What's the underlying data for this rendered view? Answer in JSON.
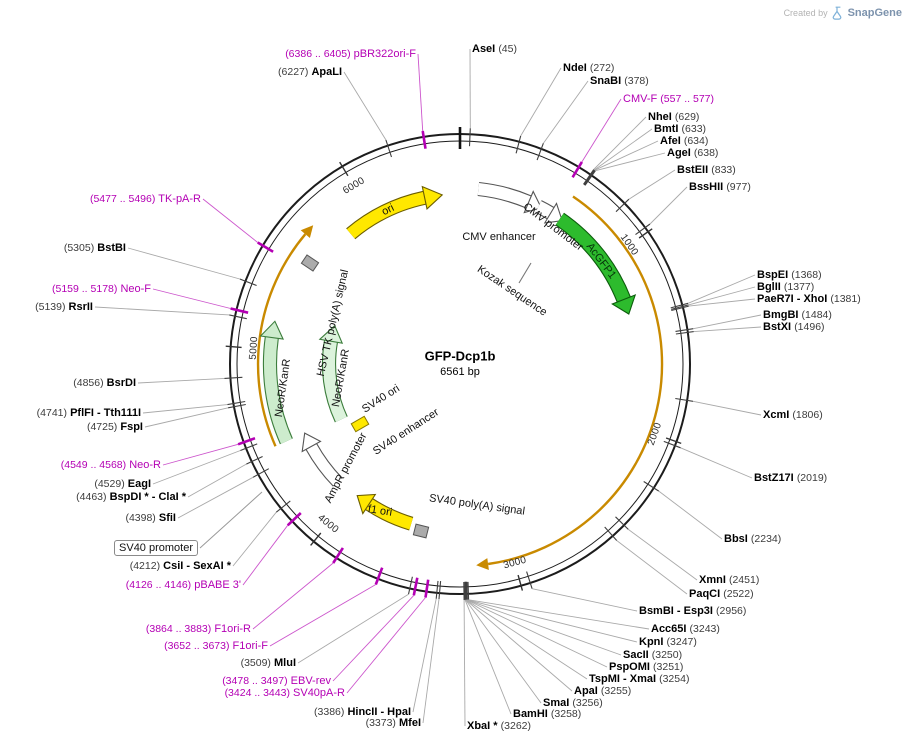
{
  "credit": {
    "prefix": "Created by",
    "brand": "SnapGene"
  },
  "plasmid": {
    "name": "GFP-Dcp1b",
    "size": "6561 bp"
  },
  "ring_ticks": [
    "1000",
    "2000",
    "3000",
    "4000",
    "5000",
    "6000"
  ],
  "colors": {
    "primer": "#b400b4",
    "enzyme": "#000000",
    "feature_green": "#2dbb2d",
    "feature_yellow": "#ffe800",
    "feature_pale_green": "#cdeccd",
    "orf_arc": "#c98a00",
    "signal_gray": "#ababab"
  },
  "features": {
    "ori": "ori",
    "cmv_enhancer": "CMV enhancer",
    "cmv_promoter": "CMV promoter",
    "acgfp1": "AcGFP1",
    "kozak_sequence": "Kozak sequence",
    "hsv_tk_polya": "HSV TK poly(A) signal",
    "neor_kanr_outer": "NeoR/KanR",
    "neor_kanr_inner": "NeoR/KanR",
    "sv40_ori": "SV40 ori",
    "sv40_enhancer": "SV40 enhancer",
    "ampr_promoter": "AmpR promoter",
    "f1_ori": "f1 ori",
    "sv40_polya": "SV40 poly(A) signal",
    "sv40_promoter": "SV40 promoter"
  },
  "sites": [
    {
      "name": "pBR322ori-F",
      "pos": "(6386 .. 6405)",
      "type": "primer"
    },
    {
      "name": "ApaLI",
      "pos": "(6227)",
      "type": "enzyme"
    },
    {
      "name": "AseI",
      "pos": "(45)",
      "type": "enzyme"
    },
    {
      "name": "NdeI",
      "pos": "(272)",
      "type": "enzyme"
    },
    {
      "name": "SnaBI",
      "pos": "(378)",
      "type": "enzyme"
    },
    {
      "name": "CMV-F",
      "pos": "(557 .. 577)",
      "type": "primer"
    },
    {
      "name": "NheI",
      "pos": "(629)",
      "type": "enzyme"
    },
    {
      "name": "BmtI",
      "pos": "(633)",
      "type": "enzyme"
    },
    {
      "name": "AfeI",
      "pos": "(634)",
      "type": "enzyme"
    },
    {
      "name": "AgeI",
      "pos": "(638)",
      "type": "enzyme"
    },
    {
      "name": "BstEII",
      "pos": "(833)",
      "type": "enzyme"
    },
    {
      "name": "BssHII",
      "pos": "(977)",
      "type": "enzyme"
    },
    {
      "name": "BspEI",
      "pos": "(1368)",
      "type": "enzyme"
    },
    {
      "name": "BglII",
      "pos": "(1377)",
      "type": "enzyme"
    },
    {
      "name": "PaeR7I - XhoI",
      "pos": "(1381)",
      "type": "enzyme"
    },
    {
      "name": "BmgBI",
      "pos": "(1484)",
      "type": "enzyme"
    },
    {
      "name": "BstXI",
      "pos": "(1496)",
      "type": "enzyme"
    },
    {
      "name": "XcmI",
      "pos": "(1806)",
      "type": "enzyme"
    },
    {
      "name": "BstZ17I",
      "pos": "(2019)",
      "type": "enzyme"
    },
    {
      "name": "BbsI",
      "pos": "(2234)",
      "type": "enzyme"
    },
    {
      "name": "XmnI",
      "pos": "(2451)",
      "type": "enzyme"
    },
    {
      "name": "PaqCI",
      "pos": "(2522)",
      "type": "enzyme"
    },
    {
      "name": "BsmBI - Esp3I",
      "pos": "(2956)",
      "type": "enzyme"
    },
    {
      "name": "Acc65I",
      "pos": "(3243)",
      "type": "enzyme"
    },
    {
      "name": "KpnI",
      "pos": "(3247)",
      "type": "enzyme"
    },
    {
      "name": "SacII",
      "pos": "(3250)",
      "type": "enzyme"
    },
    {
      "name": "PspOMI",
      "pos": "(3251)",
      "type": "enzyme"
    },
    {
      "name": "TspMI - XmaI",
      "pos": "(3254)",
      "type": "enzyme"
    },
    {
      "name": "ApaI",
      "pos": "(3255)",
      "type": "enzyme"
    },
    {
      "name": "SmaI",
      "pos": "(3256)",
      "type": "enzyme"
    },
    {
      "name": "BamHI",
      "pos": "(3258)",
      "type": "enzyme"
    },
    {
      "name": "XbaI *",
      "pos": "(3262)",
      "type": "enzyme"
    },
    {
      "name": "MfeI",
      "pos": "(3373)",
      "type": "enzyme"
    },
    {
      "name": "HincII - HpaI",
      "pos": "(3386)",
      "type": "enzyme"
    },
    {
      "name": "SV40pA-R",
      "pos": "(3424 .. 3443)",
      "type": "primer"
    },
    {
      "name": "EBV-rev",
      "pos": "(3478 .. 3497)",
      "type": "primer"
    },
    {
      "name": "MluI",
      "pos": "(3509)",
      "type": "enzyme"
    },
    {
      "name": "F1ori-F",
      "pos": "(3652 .. 3673)",
      "type": "primer"
    },
    {
      "name": "F1ori-R",
      "pos": "(3864 .. 3883)",
      "type": "primer"
    },
    {
      "name": "pBABE 3'",
      "pos": "(4126 .. 4146)",
      "type": "primer"
    },
    {
      "name": "CsiI - SexAI *",
      "pos": "(4212)",
      "type": "enzyme"
    },
    {
      "name": "SfiI",
      "pos": "(4398)",
      "type": "enzyme"
    },
    {
      "name": "BspDI * - ClaI *",
      "pos": "(4463)",
      "type": "enzyme"
    },
    {
      "name": "EagI",
      "pos": "(4529)",
      "type": "enzyme"
    },
    {
      "name": "Neo-R",
      "pos": "(4549 .. 4568)",
      "type": "primer"
    },
    {
      "name": "FspI",
      "pos": "(4725)",
      "type": "enzyme"
    },
    {
      "name": "PflFI - Tth111I",
      "pos": "(4741)",
      "type": "enzyme"
    },
    {
      "name": "BsrDI",
      "pos": "(4856)",
      "type": "enzyme"
    },
    {
      "name": "RsrII",
      "pos": "(5139)",
      "type": "enzyme"
    },
    {
      "name": "Neo-F",
      "pos": "(5159 .. 5178)",
      "type": "primer"
    },
    {
      "name": "BstBI",
      "pos": "(5305)",
      "type": "enzyme"
    },
    {
      "name": "TK-pA-R",
      "pos": "(5477 .. 5496)",
      "type": "primer"
    }
  ]
}
